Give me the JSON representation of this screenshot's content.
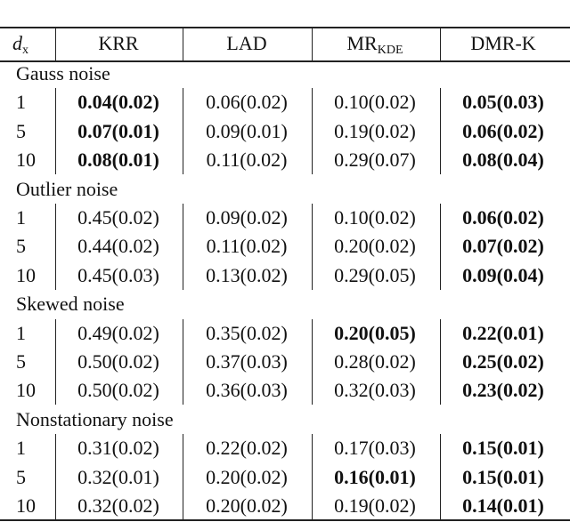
{
  "table": {
    "header": [
      {
        "text": "d",
        "sub": "x"
      },
      {
        "text": "KRR"
      },
      {
        "text": "LAD"
      },
      {
        "text": "MR",
        "sub": "KDE"
      },
      {
        "text": "DMR-K"
      }
    ],
    "groups": [
      {
        "title": "Gauss noise",
        "rows": [
          {
            "dx": "1",
            "cells": [
              "0.04(0.02)",
              "0.06(0.02)",
              "0.10(0.02)",
              "0.05(0.03)"
            ],
            "bold": [
              true,
              false,
              false,
              true
            ]
          },
          {
            "dx": "5",
            "cells": [
              "0.07(0.01)",
              "0.09(0.01)",
              "0.19(0.02)",
              "0.06(0.02)"
            ],
            "bold": [
              true,
              false,
              false,
              true
            ]
          },
          {
            "dx": "10",
            "cells": [
              "0.08(0.01)",
              "0.11(0.02)",
              "0.29(0.07)",
              "0.08(0.04)"
            ],
            "bold": [
              true,
              false,
              false,
              true
            ]
          }
        ]
      },
      {
        "title": "Outlier noise",
        "rows": [
          {
            "dx": "1",
            "cells": [
              "0.45(0.02)",
              "0.09(0.02)",
              "0.10(0.02)",
              "0.06(0.02)"
            ],
            "bold": [
              false,
              false,
              false,
              true
            ]
          },
          {
            "dx": "5",
            "cells": [
              "0.44(0.02)",
              "0.11(0.02)",
              "0.20(0.02)",
              "0.07(0.02)"
            ],
            "bold": [
              false,
              false,
              false,
              true
            ]
          },
          {
            "dx": "10",
            "cells": [
              "0.45(0.03)",
              "0.13(0.02)",
              "0.29(0.05)",
              "0.09(0.04)"
            ],
            "bold": [
              false,
              false,
              false,
              true
            ]
          }
        ]
      },
      {
        "title": "Skewed noise",
        "rows": [
          {
            "dx": "1",
            "cells": [
              "0.49(0.02)",
              "0.35(0.02)",
              "0.20(0.05)",
              "0.22(0.01)"
            ],
            "bold": [
              false,
              false,
              true,
              true
            ]
          },
          {
            "dx": "5",
            "cells": [
              "0.50(0.02)",
              "0.37(0.03)",
              "0.28(0.02)",
              "0.25(0.02)"
            ],
            "bold": [
              false,
              false,
              false,
              true
            ]
          },
          {
            "dx": "10",
            "cells": [
              "0.50(0.02)",
              "0.36(0.03)",
              "0.32(0.03)",
              "0.23(0.02)"
            ],
            "bold": [
              false,
              false,
              false,
              true
            ]
          }
        ]
      },
      {
        "title": "Nonstationary noise",
        "rows": [
          {
            "dx": "1",
            "cells": [
              "0.31(0.02)",
              "0.22(0.02)",
              "0.17(0.03)",
              "0.15(0.01)"
            ],
            "bold": [
              false,
              false,
              false,
              true
            ]
          },
          {
            "dx": "5",
            "cells": [
              "0.32(0.01)",
              "0.20(0.02)",
              "0.16(0.01)",
              "0.15(0.01)"
            ],
            "bold": [
              false,
              false,
              true,
              true
            ]
          },
          {
            "dx": "10",
            "cells": [
              "0.32(0.02)",
              "0.20(0.02)",
              "0.19(0.02)",
              "0.14(0.01)"
            ],
            "bold": [
              false,
              false,
              false,
              true
            ]
          }
        ]
      }
    ]
  }
}
